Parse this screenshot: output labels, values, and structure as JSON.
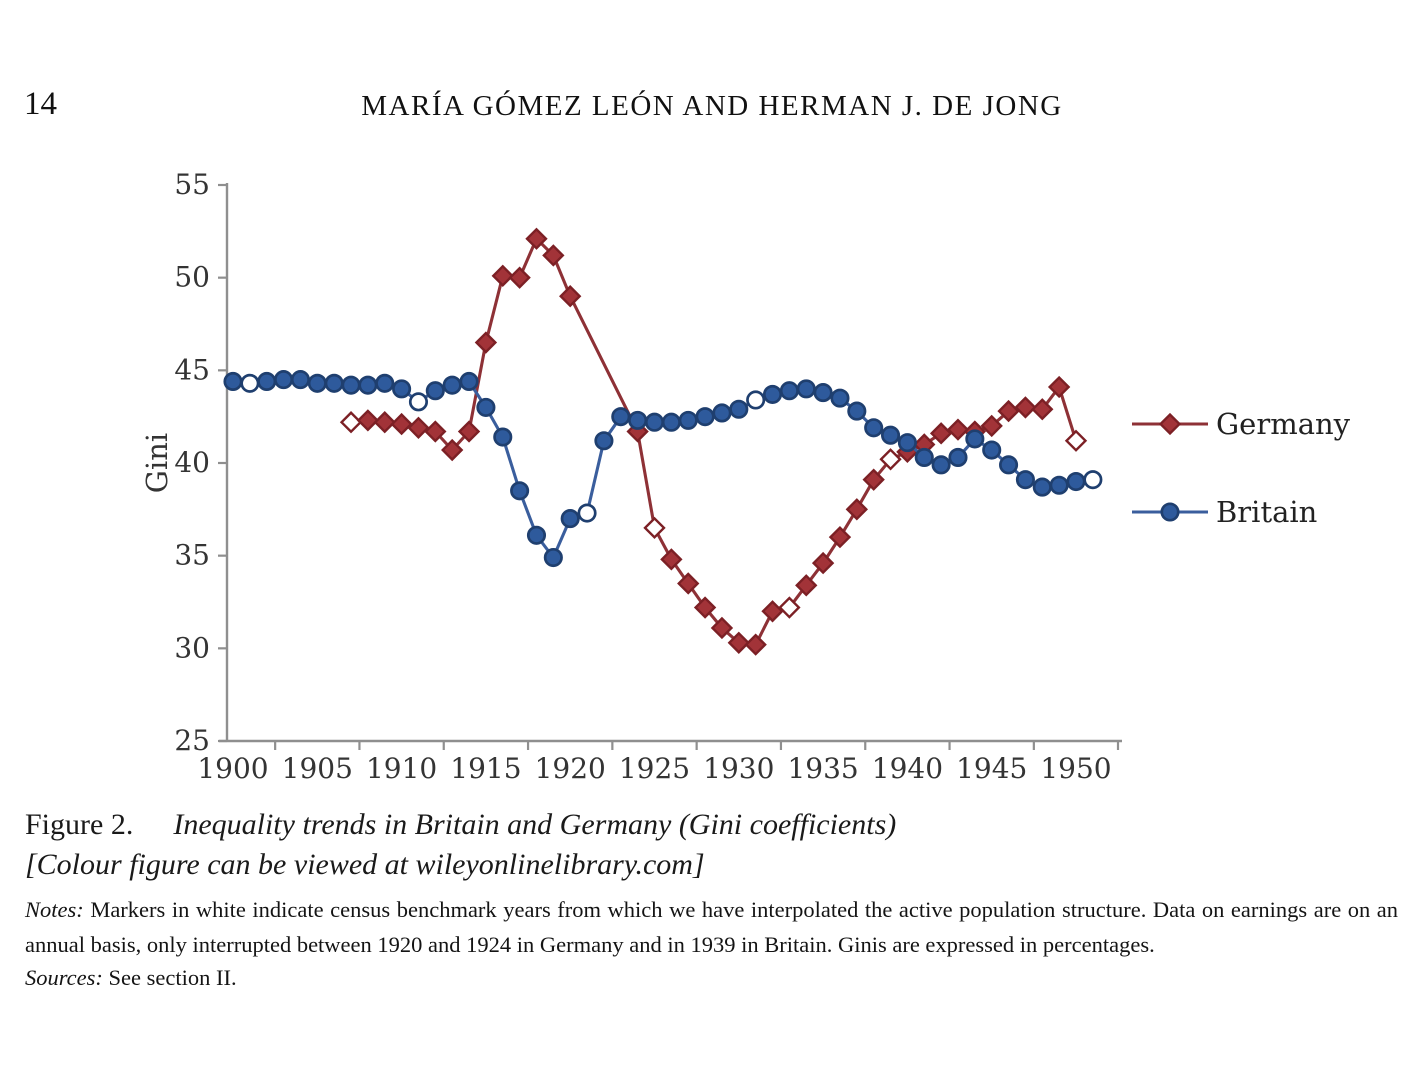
{
  "page": {
    "number": "14",
    "running_head": "MARÍA GÓMEZ LEÓN AND HERMAN J. DE JONG"
  },
  "figure": {
    "caption_label": "Figure 2.",
    "caption_title": "Inequality trends in Britain and Germany (Gini coefficients)",
    "caption_link_line": "[Colour figure can be viewed at wileyonlinelibrary.com]",
    "notes_label": "Notes:",
    "notes_text": "Markers in white indicate census benchmark years from which we have interpolated the active population structure. Data on earnings are on an annual basis, only interrupted between 1920 and 1924 in Germany and in 1939 in Britain. Ginis are expressed in percentages.",
    "sources_label": "Sources:",
    "sources_text": "See section II."
  },
  "chart_data": {
    "type": "line",
    "title": "",
    "xlabel": "",
    "ylabel": "Gini",
    "ylim": [
      25,
      55
    ],
    "yticks": [
      55,
      50,
      45,
      40,
      35,
      30,
      25
    ],
    "xticks": [
      1900,
      1905,
      1910,
      1915,
      1920,
      1925,
      1930,
      1935,
      1940,
      1945,
      1950
    ],
    "grid": false,
    "legend_position": "right",
    "marker_note": "open (white) markers indicate census benchmark years",
    "axis_color": "#8f8f8f",
    "text_color": "#343434",
    "series": [
      {
        "name": "Germany",
        "marker": "diamond",
        "line_color": "#8e3136",
        "marker_fill": "#a23338",
        "marker_edge": "#7c2025",
        "gap_years": "1921-1923 (no data, straight connector 1920→1924)",
        "points": [
          [
            1907,
            42.2,
            1
          ],
          [
            1908,
            42.3,
            0
          ],
          [
            1909,
            42.2,
            0
          ],
          [
            1910,
            42.1,
            0
          ],
          [
            1911,
            41.9,
            0
          ],
          [
            1912,
            41.7,
            0
          ],
          [
            1913,
            40.7,
            0
          ],
          [
            1914,
            41.7,
            0
          ],
          [
            1915,
            46.5,
            0
          ],
          [
            1916,
            50.1,
            0
          ],
          [
            1917,
            50.0,
            0
          ],
          [
            1918,
            52.1,
            0
          ],
          [
            1919,
            51.2,
            0
          ],
          [
            1920,
            49.0,
            0
          ],
          [
            1924,
            41.7,
            0
          ],
          [
            1925,
            36.5,
            1
          ],
          [
            1926,
            34.8,
            0
          ],
          [
            1927,
            33.5,
            0
          ],
          [
            1928,
            32.2,
            0
          ],
          [
            1929,
            31.1,
            0
          ],
          [
            1930,
            30.3,
            0
          ],
          [
            1931,
            30.2,
            0
          ],
          [
            1932,
            32.0,
            0
          ],
          [
            1933,
            32.2,
            1
          ],
          [
            1934,
            33.4,
            0
          ],
          [
            1935,
            34.6,
            0
          ],
          [
            1936,
            36.0,
            0
          ],
          [
            1937,
            37.5,
            0
          ],
          [
            1938,
            39.1,
            0
          ],
          [
            1939,
            40.2,
            1
          ],
          [
            1940,
            40.6,
            0
          ],
          [
            1941,
            41.0,
            0
          ],
          [
            1942,
            41.6,
            0
          ],
          [
            1943,
            41.8,
            0
          ],
          [
            1944,
            41.7,
            0
          ],
          [
            1945,
            42.0,
            0
          ],
          [
            1946,
            42.8,
            0
          ],
          [
            1947,
            43.0,
            0
          ],
          [
            1948,
            42.9,
            0
          ],
          [
            1949,
            44.1,
            0
          ],
          [
            1950,
            41.2,
            1
          ]
        ]
      },
      {
        "name": "Britain",
        "marker": "circle",
        "line_color": "#3a5e9d",
        "marker_fill": "#2e5a9c",
        "marker_edge": "#1f3f6f",
        "gap_years": "1939 interruption (interpolated point shown connected)",
        "points": [
          [
            1900,
            44.4,
            0
          ],
          [
            1901,
            44.3,
            1
          ],
          [
            1902,
            44.4,
            0
          ],
          [
            1903,
            44.5,
            0
          ],
          [
            1904,
            44.5,
            0
          ],
          [
            1905,
            44.3,
            0
          ],
          [
            1906,
            44.3,
            0
          ],
          [
            1907,
            44.2,
            0
          ],
          [
            1908,
            44.2,
            0
          ],
          [
            1909,
            44.3,
            0
          ],
          [
            1910,
            44.0,
            0
          ],
          [
            1911,
            43.3,
            1
          ],
          [
            1912,
            43.9,
            0
          ],
          [
            1913,
            44.2,
            0
          ],
          [
            1914,
            44.4,
            0
          ],
          [
            1915,
            43.0,
            0
          ],
          [
            1916,
            41.4,
            0
          ],
          [
            1917,
            38.5,
            0
          ],
          [
            1918,
            36.1,
            0
          ],
          [
            1919,
            34.9,
            0
          ],
          [
            1920,
            37.0,
            0
          ],
          [
            1921,
            37.3,
            1
          ],
          [
            1922,
            41.2,
            0
          ],
          [
            1923,
            42.5,
            0
          ],
          [
            1924,
            42.3,
            0
          ],
          [
            1925,
            42.2,
            0
          ],
          [
            1926,
            42.2,
            0
          ],
          [
            1927,
            42.3,
            0
          ],
          [
            1928,
            42.5,
            0
          ],
          [
            1929,
            42.7,
            0
          ],
          [
            1930,
            42.9,
            0
          ],
          [
            1931,
            43.4,
            1
          ],
          [
            1932,
            43.7,
            0
          ],
          [
            1933,
            43.9,
            0
          ],
          [
            1934,
            44.0,
            0
          ],
          [
            1935,
            43.8,
            0
          ],
          [
            1936,
            43.5,
            0
          ],
          [
            1937,
            42.8,
            0
          ],
          [
            1938,
            41.9,
            0
          ],
          [
            1939,
            41.5,
            0
          ],
          [
            1940,
            41.1,
            0
          ],
          [
            1941,
            40.3,
            0
          ],
          [
            1942,
            39.9,
            0
          ],
          [
            1943,
            40.3,
            0
          ],
          [
            1944,
            41.3,
            0
          ],
          [
            1945,
            40.7,
            0
          ],
          [
            1946,
            39.9,
            0
          ],
          [
            1947,
            39.1,
            0
          ],
          [
            1948,
            38.7,
            0
          ],
          [
            1949,
            38.8,
            0
          ],
          [
            1950,
            39.0,
            0
          ],
          [
            1951,
            39.1,
            1
          ]
        ]
      }
    ]
  }
}
